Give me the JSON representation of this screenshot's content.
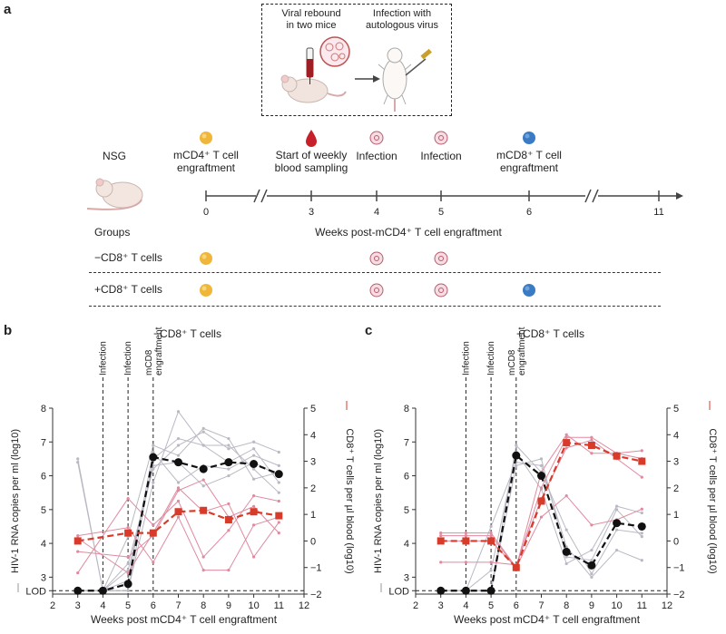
{
  "panels": {
    "a": "a",
    "b": "b",
    "c": "c"
  },
  "inset": {
    "left_label": "Viral rebound\nin two mice",
    "right_label": "Infection with\nautologous virus"
  },
  "timeline": {
    "model": "NSG",
    "events": [
      {
        "label": "mCD4⁺ T cell\nengraftment",
        "week": "0",
        "icon": "yellow-cell-icon"
      },
      {
        "label": "Start of weekly\nblood sampling",
        "week": "3",
        "icon": "blood-drop-icon"
      },
      {
        "label": "Infection",
        "week": "4",
        "icon": "virus-icon"
      },
      {
        "label": "Infection",
        "week": "5",
        "icon": "virus-icon"
      },
      {
        "label": "mCD8⁺ T cell\nengraftment",
        "week": "6",
        "icon": "blue-cell-icon"
      }
    ],
    "end_week": "11",
    "axis_label": "Weeks post-mCD4⁺ T cell engraftment",
    "groups_label": "Groups",
    "groups": [
      "−CD8⁺ T cells",
      "+CD8⁺ T cells"
    ]
  },
  "colors": {
    "black": "#111111",
    "red": "#d93b2b",
    "grey": "#b9b9c4",
    "pink": "#e08aa0"
  },
  "chart_data": [
    {
      "type": "line",
      "title": "−CD8⁺ T cells",
      "xlabel": "Weeks post mCD4⁺ T cell engraftment",
      "ylabel_left": "HIV-1 RNA copies per ml (log10)",
      "ylabel_right": "CD8⁺ T cells per µl blood (log10)",
      "xlim": [
        2,
        12
      ],
      "ylim_left": [
        2.5,
        8
      ],
      "ylim_right": [
        -2,
        5
      ],
      "x_ticks": [
        2,
        3,
        4,
        5,
        6,
        7,
        8,
        9,
        10,
        11,
        12
      ],
      "y_ticks_left": [
        "LOD",
        3,
        4,
        5,
        6,
        7,
        8
      ],
      "y_ticks_right": [
        -2,
        -1,
        0,
        1,
        2,
        3,
        4,
        5
      ],
      "vlines": [
        {
          "x": 4,
          "label": "Infection"
        },
        {
          "x": 5,
          "label": "Infection"
        },
        {
          "x": 6,
          "label": "mCD8\nengraftment"
        }
      ],
      "lod": 2.6,
      "series": [
        {
          "axis": "left",
          "style": "black",
          "x": [
            3,
            4,
            5,
            6,
            7,
            8,
            9,
            10,
            11
          ],
          "y": [
            2.6,
            2.6,
            2.8,
            6.55,
            6.4,
            6.2,
            6.4,
            6.35,
            6.05
          ]
        },
        {
          "axis": "right",
          "style": "red",
          "x": [
            3,
            5,
            6,
            7,
            8,
            9,
            10,
            11
          ],
          "y": [
            0,
            0.3,
            0.3,
            1.1,
            1.15,
            0.8,
            1.1,
            0.95
          ]
        }
      ],
      "thin_left": [
        [
          [
            3,
            6.5
          ],
          [
            4,
            2.6
          ],
          [
            5,
            3.4
          ],
          [
            6,
            6.2
          ],
          [
            7,
            6.9
          ],
          [
            8,
            7.3
          ],
          [
            9,
            6.8
          ],
          [
            10,
            7.0
          ],
          [
            11,
            6.7
          ]
        ],
        [
          [
            3,
            6.4
          ],
          [
            4,
            2.6
          ],
          [
            5,
            2.6
          ],
          [
            6,
            5.8
          ],
          [
            7,
            7.9
          ],
          [
            8,
            6.9
          ],
          [
            9,
            6.4
          ],
          [
            10,
            6.8
          ],
          [
            11,
            5.8
          ]
        ],
        [
          [
            3,
            2.6
          ],
          [
            4,
            2.6
          ],
          [
            5,
            4.2
          ],
          [
            6,
            6.9
          ],
          [
            7,
            6.6
          ],
          [
            8,
            7.4
          ],
          [
            9,
            7.1
          ],
          [
            10,
            5.9
          ],
          [
            11,
            6.1
          ]
        ],
        [
          [
            3,
            2.6
          ],
          [
            4,
            2.6
          ],
          [
            5,
            2.9
          ],
          [
            6,
            6.7
          ],
          [
            7,
            5.8
          ],
          [
            8,
            6.3
          ],
          [
            9,
            6.2
          ],
          [
            10,
            6.6
          ],
          [
            11,
            6.3
          ]
        ],
        [
          [
            3,
            2.6
          ],
          [
            4,
            2.6
          ],
          [
            5,
            3.2
          ],
          [
            6,
            6.3
          ],
          [
            7,
            6.4
          ],
          [
            8,
            5.7
          ],
          [
            9,
            6.0
          ],
          [
            10,
            6.4
          ],
          [
            11,
            6.0
          ]
        ],
        [
          [
            3,
            2.6
          ],
          [
            4,
            2.6
          ],
          [
            5,
            2.6
          ],
          [
            6,
            6.5
          ],
          [
            7,
            7.1
          ],
          [
            8,
            6.9
          ],
          [
            9,
            6.9
          ],
          [
            10,
            6.2
          ],
          [
            11,
            5.5
          ]
        ]
      ],
      "thin_right": [
        [
          [
            3,
            0.1
          ],
          [
            5,
            -1.2
          ],
          [
            6,
            0.3
          ],
          [
            7,
            2.0
          ],
          [
            8,
            1.1
          ],
          [
            9,
            1.4
          ],
          [
            10,
            -0.6
          ],
          [
            11,
            0.7
          ]
        ],
        [
          [
            3,
            0.2
          ],
          [
            5,
            0.5
          ],
          [
            6,
            -0.8
          ],
          [
            7,
            0.9
          ],
          [
            8,
            -1.1
          ],
          [
            9,
            -1.1
          ],
          [
            10,
            0.6
          ],
          [
            11,
            0.9
          ]
        ],
        [
          [
            3,
            -1.2
          ],
          [
            5,
            1.6
          ],
          [
            6,
            0.6
          ],
          [
            7,
            1.5
          ],
          [
            8,
            -0.6
          ],
          [
            9,
            0.4
          ],
          [
            10,
            1.7
          ],
          [
            11,
            1.5
          ]
        ],
        [
          [
            3,
            -0.4
          ],
          [
            5,
            -0.6
          ],
          [
            6,
            0.2
          ],
          [
            7,
            1.9
          ],
          [
            8,
            2.3
          ],
          [
            9,
            0.9
          ],
          [
            10,
            1.3
          ],
          [
            11,
            0.3
          ]
        ]
      ]
    },
    {
      "type": "line",
      "title": "+CD8⁺ T cells",
      "xlabel": "Weeks post mCD4⁺ T cell engraftment",
      "ylabel_left": "HIV-1 RNA copies per ml (log10)",
      "ylabel_right": "CD8⁺ T cells per µl blood (log10)",
      "xlim": [
        2,
        12
      ],
      "ylim_left": [
        2.5,
        8
      ],
      "ylim_right": [
        -2,
        5
      ],
      "x_ticks": [
        2,
        3,
        4,
        5,
        6,
        7,
        8,
        9,
        10,
        11,
        12
      ],
      "y_ticks_left": [
        "LOD",
        3,
        4,
        5,
        6,
        7,
        8
      ],
      "y_ticks_right": [
        -2,
        -1,
        0,
        1,
        2,
        3,
        4,
        5
      ],
      "vlines": [
        {
          "x": 4,
          "label": "Infection"
        },
        {
          "x": 5,
          "label": "Infection"
        },
        {
          "x": 6,
          "label": "mCD8\nengraftment"
        }
      ],
      "lod": 2.6,
      "series": [
        {
          "axis": "left",
          "style": "black",
          "x": [
            3,
            4,
            5,
            6,
            7,
            8,
            9,
            10,
            11
          ],
          "y": [
            2.6,
            2.6,
            2.6,
            6.6,
            6.0,
            3.75,
            3.35,
            4.6,
            4.5
          ]
        },
        {
          "axis": "right",
          "style": "red",
          "x": [
            3,
            4,
            5,
            6,
            7,
            8,
            9,
            10,
            11
          ],
          "y": [
            0,
            0,
            0,
            -1,
            1.5,
            3.7,
            3.6,
            3.2,
            3.0
          ]
        }
      ],
      "thin_left": [
        [
          [
            3,
            2.6
          ],
          [
            4,
            2.6
          ],
          [
            5,
            4.5
          ],
          [
            6,
            6.4
          ],
          [
            7,
            6.3
          ],
          [
            8,
            3.9
          ],
          [
            9,
            3.0
          ],
          [
            10,
            3.8
          ],
          [
            11,
            3.5
          ]
        ],
        [
          [
            3,
            2.6
          ],
          [
            4,
            2.6
          ],
          [
            5,
            3.2
          ],
          [
            6,
            6.7
          ],
          [
            7,
            5.6
          ],
          [
            8,
            3.4
          ],
          [
            9,
            3.8
          ],
          [
            10,
            5.1
          ],
          [
            11,
            4.9
          ]
        ],
        [
          [
            3,
            2.6
          ],
          [
            4,
            2.6
          ],
          [
            5,
            2.6
          ],
          [
            6,
            6.9
          ],
          [
            7,
            6.1
          ],
          [
            8,
            4.4
          ],
          [
            9,
            3.1
          ],
          [
            10,
            4.4
          ],
          [
            11,
            4.3
          ]
        ],
        [
          [
            3,
            2.6
          ],
          [
            4,
            2.6
          ],
          [
            5,
            2.6
          ],
          [
            6,
            6.3
          ],
          [
            7,
            6.5
          ],
          [
            8,
            3.6
          ],
          [
            9,
            3.5
          ],
          [
            10,
            5.0
          ],
          [
            11,
            4.2
          ]
        ]
      ],
      "thin_right": [
        [
          [
            3,
            0.3
          ],
          [
            4,
            0.3
          ],
          [
            5,
            0.3
          ],
          [
            6,
            -1.0
          ],
          [
            7,
            2.6
          ],
          [
            8,
            4.0
          ],
          [
            9,
            3.3
          ],
          [
            10,
            3.3
          ],
          [
            11,
            3.4
          ]
        ],
        [
          [
            3,
            -0.8
          ],
          [
            4,
            -0.8
          ],
          [
            5,
            -0.8
          ],
          [
            6,
            -0.9
          ],
          [
            7,
            1.6
          ],
          [
            8,
            3.5
          ],
          [
            9,
            3.8
          ],
          [
            10,
            3.1
          ],
          [
            11,
            2.4
          ]
        ],
        [
          [
            3,
            0
          ],
          [
            4,
            0
          ],
          [
            5,
            0
          ],
          [
            6,
            -1.0
          ],
          [
            7,
            0.9
          ],
          [
            8,
            1.7
          ],
          [
            9,
            0.6
          ],
          [
            10,
            0.8
          ],
          [
            11,
            1.2
          ]
        ],
        [
          [
            3,
            0.2
          ],
          [
            4,
            0.2
          ],
          [
            5,
            0.2
          ],
          [
            6,
            -1.0
          ],
          [
            7,
            2.0
          ],
          [
            8,
            3.9
          ],
          [
            9,
            3.9
          ],
          [
            10,
            3.3
          ],
          [
            11,
            3.1
          ]
        ]
      ]
    }
  ]
}
